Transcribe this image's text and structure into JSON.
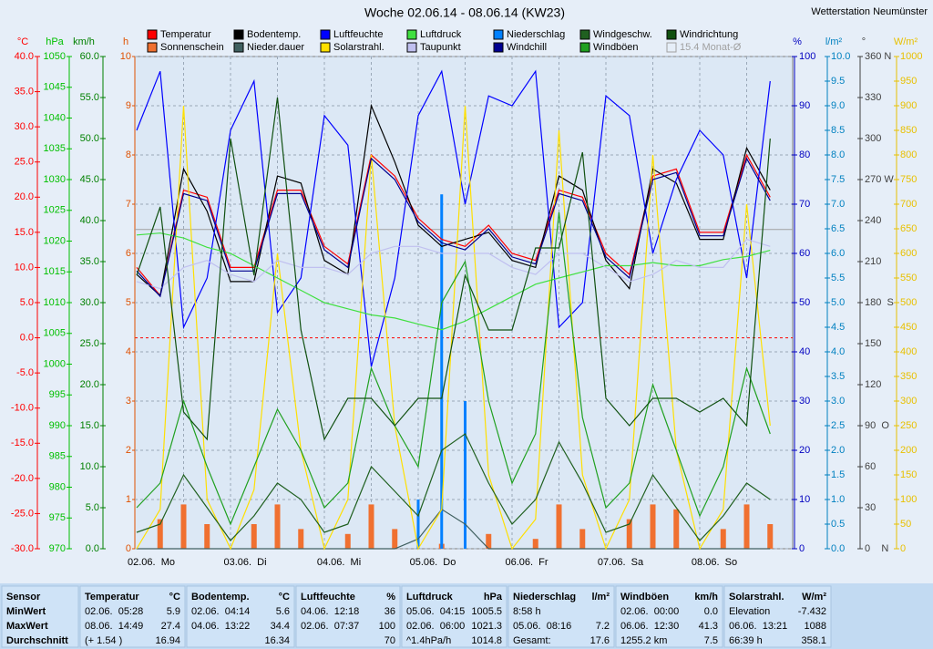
{
  "chart_data": {
    "type": "line",
    "title": "Woche 02.06.14 - 08.06.14 (KW23)",
    "station": "Wetterstation Neumünster",
    "x": [
      "02.06. 00:00",
      "02.06. 06:00",
      "02.06. 12:00",
      "02.06. 18:00",
      "03.06. 00:00",
      "03.06. 06:00",
      "03.06. 12:00",
      "03.06. 18:00",
      "04.06. 00:00",
      "04.06. 06:00",
      "04.06. 12:00",
      "04.06. 18:00",
      "05.06. 00:00",
      "05.06. 06:00",
      "05.06. 12:00",
      "05.06. 18:00",
      "06.06. 00:00",
      "06.06. 06:00",
      "06.06. 12:00",
      "06.06. 18:00",
      "07.06. 00:00",
      "07.06. 06:00",
      "07.06. 12:00",
      "07.06. 18:00",
      "08.06. 00:00",
      "08.06. 06:00",
      "08.06. 12:00",
      "08.06. 18:00"
    ],
    "x_labels": [
      "02.06.  Mo",
      "03.06.  Di",
      "04.06.  Mi",
      "05.06.  Do",
      "06.06.  Fr",
      "07.06.  Sa",
      "08.06.  So"
    ],
    "axes": [
      {
        "unit": "°C",
        "color": "#ff0000",
        "lim": [
          -30,
          40
        ],
        "ticks": [
          {
            "value": -30,
            "label": "-30.0"
          },
          {
            "value": -25,
            "label": "-25.0"
          },
          {
            "value": -20,
            "label": "-20.0"
          },
          {
            "value": -15,
            "label": "-15.0"
          },
          {
            "value": -10,
            "label": "-10.0"
          },
          {
            "value": -5,
            "label": "-5.0"
          },
          {
            "value": 0,
            "label": "0.0"
          },
          {
            "value": 5,
            "label": "5.0"
          },
          {
            "value": 10,
            "label": "10.0"
          },
          {
            "value": 15,
            "label": "15.0"
          },
          {
            "value": 20,
            "label": "20.0"
          },
          {
            "value": 25,
            "label": "25.0"
          },
          {
            "value": 30,
            "label": "30.0"
          },
          {
            "value": 35,
            "label": "35.0"
          },
          {
            "value": 40,
            "label": "40.0"
          }
        ]
      },
      {
        "unit": "hPa",
        "color": "#00c000",
        "lim": [
          970,
          1050
        ],
        "ticks": [
          970,
          975,
          980,
          985,
          990,
          995,
          1000,
          1005,
          1010,
          1015,
          1020,
          1025,
          1030,
          1035,
          1040,
          1045,
          1050
        ]
      },
      {
        "unit": "km/h",
        "color": "#008000",
        "lim": [
          0,
          60
        ],
        "ticks": [
          {
            "value": 0,
            "label": "0.0"
          },
          {
            "value": 5,
            "label": "5.0"
          },
          {
            "value": 10,
            "label": "10.0"
          },
          {
            "value": 15,
            "label": "15.0"
          },
          {
            "value": 20,
            "label": "20.0"
          },
          {
            "value": 25,
            "label": "25.0"
          },
          {
            "value": 30,
            "label": "30.0"
          },
          {
            "value": 35,
            "label": "35.0"
          },
          {
            "value": 40,
            "label": "40.0"
          },
          {
            "value": 45,
            "label": "45.0"
          },
          {
            "value": 50,
            "label": "50.0"
          },
          {
            "value": 55,
            "label": "55.0"
          },
          {
            "value": 60,
            "label": "60.0"
          }
        ]
      },
      {
        "unit": "h",
        "color": "#e05000",
        "lim": [
          0,
          10
        ],
        "ticks": [
          0,
          1,
          2,
          3,
          4,
          5,
          6,
          7,
          8,
          9,
          10
        ]
      },
      {
        "unit": "%",
        "color": "#0000c0",
        "lim": [
          0,
          100
        ],
        "ticks": [
          0,
          10,
          20,
          30,
          40,
          50,
          60,
          70,
          80,
          90,
          100
        ]
      },
      {
        "unit": "l/m²",
        "color": "#0080c0",
        "lim": [
          0,
          10
        ],
        "ticks": [
          {
            "value": 0,
            "label": "0.0"
          },
          {
            "value": 0.5,
            "label": "0.5"
          },
          {
            "value": 1,
            "label": "1.0"
          },
          {
            "value": 1.5,
            "label": "1.5"
          },
          {
            "value": 2,
            "label": "2.0"
          },
          {
            "value": 2.5,
            "label": "2.5"
          },
          {
            "value": 3,
            "label": "3.0"
          },
          {
            "value": 3.5,
            "label": "3.5"
          },
          {
            "value": 4,
            "label": "4.0"
          },
          {
            "value": 4.5,
            "label": "4.5"
          },
          {
            "value": 5,
            "label": "5.0"
          },
          {
            "value": 5.5,
            "label": "5.5"
          },
          {
            "value": 6,
            "label": "6.0"
          },
          {
            "value": 6.5,
            "label": "6.5"
          },
          {
            "value": 7,
            "label": "7.0"
          },
          {
            "value": 7.5,
            "label": "7.5"
          },
          {
            "value": 8,
            "label": "8.0"
          },
          {
            "value": 8.5,
            "label": "8.5"
          },
          {
            "value": 9,
            "label": "9.0"
          },
          {
            "value": 9.5,
            "label": "9.5"
          },
          {
            "value": 10,
            "label": "10.0"
          }
        ]
      },
      {
        "unit": "°",
        "color": "#404040",
        "lim": [
          0,
          360
        ],
        "ticks": [
          {
            "value": 0,
            "label": "0    N"
          },
          30,
          60,
          {
            "value": 90,
            "label": "90  O"
          },
          120,
          150,
          {
            "value": 180,
            "label": "180  S"
          },
          210,
          240,
          {
            "value": 270,
            "label": "270 W"
          },
          300,
          330,
          {
            "value": 360,
            "label": "360 N"
          }
        ]
      },
      {
        "unit": "W/m²",
        "color": "#e8c000",
        "lim": [
          0,
          1000
        ],
        "ticks": [
          0,
          50,
          100,
          150,
          200,
          250,
          300,
          350,
          400,
          450,
          500,
          550,
          600,
          650,
          700,
          750,
          800,
          850,
          900,
          950,
          1000
        ]
      }
    ],
    "series": [
      {
        "name": "Temperatur",
        "color": "#ff0000",
        "axis": "°C",
        "values": [
          10,
          6,
          21,
          20,
          10,
          10,
          21,
          21,
          13,
          10.5,
          26,
          23,
          17,
          14,
          13,
          16,
          12,
          11,
          21,
          20,
          12,
          9,
          23,
          24,
          15,
          15,
          26,
          20
        ]
      },
      {
        "name": "Sonnenschein",
        "color": "#f07030",
        "axis": "h",
        "type": "bar",
        "values": [
          0,
          0.6,
          0.9,
          0.5,
          0,
          0.5,
          0.9,
          0.4,
          0,
          0.3,
          0.9,
          0.4,
          0,
          0.1,
          0,
          0.3,
          0,
          0.2,
          0.9,
          0.4,
          0,
          0.6,
          0.9,
          0.8,
          0,
          0.4,
          0.9,
          0.5
        ]
      },
      {
        "name": "Bodentemp.",
        "color": "#000000",
        "axis": "°C",
        "values": [
          9,
          6,
          24,
          18,
          8,
          8,
          23,
          22,
          11,
          9,
          33,
          25,
          16,
          13,
          14,
          15,
          11,
          10,
          23,
          21,
          11,
          7,
          24,
          22,
          14,
          14,
          27,
          21
        ]
      },
      {
        "name": "Nieder.dauer",
        "color": "#406060",
        "axis": "h",
        "values": [
          0,
          0,
          0,
          0,
          0,
          0,
          0,
          0,
          0,
          0,
          0,
          0,
          0.2,
          0.8,
          0.5,
          0,
          0,
          0,
          0,
          0,
          0,
          0,
          0,
          0,
          0,
          0,
          0,
          0
        ]
      },
      {
        "name": "Luftfeuchte",
        "color": "#0000ff",
        "axis": "%",
        "values": [
          85,
          97,
          45,
          55,
          85,
          95,
          48,
          55,
          88,
          82,
          37,
          55,
          88,
          97,
          70,
          92,
          90,
          97,
          45,
          50,
          92,
          88,
          60,
          75,
          85,
          80,
          55,
          95
        ]
      },
      {
        "name": "Solarstrahl.",
        "color": "#ffe000",
        "axis": "W/m²",
        "values": [
          0,
          80,
          900,
          100,
          0,
          120,
          600,
          200,
          0,
          100,
          800,
          250,
          0,
          80,
          900,
          150,
          0,
          60,
          850,
          150,
          0,
          100,
          800,
          200,
          0,
          80,
          700,
          250
        ]
      },
      {
        "name": "Luftdruck",
        "color": "#40e040",
        "axis": "hPa",
        "values": [
          1021,
          1021.3,
          1020.5,
          1019,
          1018,
          1016,
          1014,
          1012,
          1010,
          1009,
          1008,
          1007.5,
          1006.5,
          1005.6,
          1007,
          1009,
          1011,
          1013,
          1014,
          1015,
          1016,
          1016,
          1016.5,
          1016,
          1016,
          1017,
          1017.5,
          1018.5
        ]
      },
      {
        "name": "Taupunkt",
        "color": "#c0c0f0",
        "axis": "°C",
        "values": [
          8,
          7,
          10,
          11,
          9,
          8,
          11,
          10,
          10,
          9,
          12,
          13,
          13,
          12,
          12,
          12,
          10,
          9,
          12,
          12,
          10,
          8,
          9,
          11,
          10,
          10,
          14,
          13
        ]
      },
      {
        "name": "Niederschlag",
        "color": "#0080ff",
        "axis": "l/m²",
        "type": "bar",
        "values": [
          0,
          0,
          0,
          0,
          0,
          0,
          0,
          0,
          0,
          0,
          0,
          0,
          1,
          7.2,
          3,
          0,
          0,
          0,
          0,
          0,
          0,
          0,
          0,
          0,
          0,
          0,
          0,
          0
        ]
      },
      {
        "name": "Windchill",
        "color": "#000090",
        "axis": "°C",
        "values": [
          9.5,
          5.9,
          20.5,
          19.5,
          9.5,
          9.5,
          20.5,
          20.5,
          12.5,
          10,
          25.5,
          22.5,
          16.5,
          13.5,
          12.5,
          15.5,
          11.5,
          10.5,
          20.5,
          19.5,
          11.5,
          8.5,
          22.5,
          23.5,
          14.5,
          14.5,
          25.5,
          19.5
        ]
      },
      {
        "name": "Windgeschw.",
        "color": "#206020",
        "axis": "km/h",
        "values": [
          2,
          3,
          9,
          5,
          1,
          4,
          8,
          6,
          2,
          3,
          10,
          7,
          4,
          12,
          14,
          8,
          3,
          6,
          13,
          8,
          2,
          3,
          9,
          5,
          1,
          4,
          8,
          6
        ]
      },
      {
        "name": "Windböen",
        "color": "#20a020",
        "axis": "km/h",
        "values": [
          5,
          8,
          18,
          10,
          3,
          10,
          17,
          12,
          5,
          8,
          22,
          15,
          10,
          30,
          35,
          18,
          8,
          14,
          41,
          16,
          5,
          8,
          20,
          12,
          4,
          10,
          22,
          14
        ]
      },
      {
        "name": "Windrichtung",
        "color": "#105010",
        "axis": "°",
        "values": [
          200,
          250,
          100,
          80,
          300,
          200,
          330,
          160,
          80,
          110,
          110,
          90,
          110,
          110,
          200,
          160,
          160,
          220,
          220,
          290,
          110,
          90,
          110,
          110,
          100,
          110,
          90,
          300
        ]
      }
    ],
    "monthly_average": {
      "value": 15.4,
      "label": "15.4 Monat-Ø",
      "axis": "°C"
    }
  },
  "table": {
    "row_labels": [
      "Sensor",
      "MinWert",
      "MaxWert",
      "Durchschnitt"
    ],
    "columns": [
      {
        "name": "Temperatur",
        "unit": "°C",
        "rows": [
          {
            "time": "02.06.  05:28",
            "value": "5.9"
          },
          {
            "time": "08.06.  14:49",
            "value": "27.4"
          },
          {
            "time": "(+ 1.54 )",
            "value": "16.94"
          }
        ]
      },
      {
        "name": "Bodentemp.",
        "unit": "°C",
        "rows": [
          {
            "time": "02.06.  04:14",
            "value": "5.6"
          },
          {
            "time": "04.06.  13:22",
            "value": "34.4"
          },
          {
            "value": "16.34"
          }
        ]
      },
      {
        "name": "Luftfeuchte",
        "unit": "%",
        "rows": [
          {
            "time": "04.06.  12:18",
            "value": "36"
          },
          {
            "time": "02.06.  07:37",
            "value": "100"
          },
          {
            "value": "70"
          }
        ]
      },
      {
        "name": "Luftdruck",
        "unit": "hPa",
        "rows": [
          {
            "time": "05.06.  04:15",
            "value": "1005.5"
          },
          {
            "time": "02.06.  06:00",
            "value": "1021.3"
          },
          {
            "time": "^1.4hPa/h",
            "value": "1014.8"
          }
        ]
      },
      {
        "name": "Niederschlag",
        "unit": "l/m²",
        "rows": [
          {
            "time": "8:58 h"
          },
          {
            "time": "05.06.  08:16",
            "value": "7.2"
          },
          {
            "time": "Gesamt:",
            "value": "17.6"
          }
        ]
      },
      {
        "name": "Windböen",
        "unit": "km/h",
        "rows": [
          {
            "time": "02.06.  00:00",
            "value": "0.0"
          },
          {
            "time": "06.06.  12:30",
            "value": "41.3"
          },
          {
            "time": "1255.2 km",
            "value": "7.5"
          }
        ]
      },
      {
        "name": "Solarstrahl.",
        "unit": "W/m²",
        "rows": [
          {
            "time": "Elevation",
            "value": "-7.432"
          },
          {
            "time": "06.06.  13:21",
            "value": "1088"
          },
          {
            "time": "66:39 h",
            "value": "358.1"
          }
        ]
      }
    ]
  }
}
